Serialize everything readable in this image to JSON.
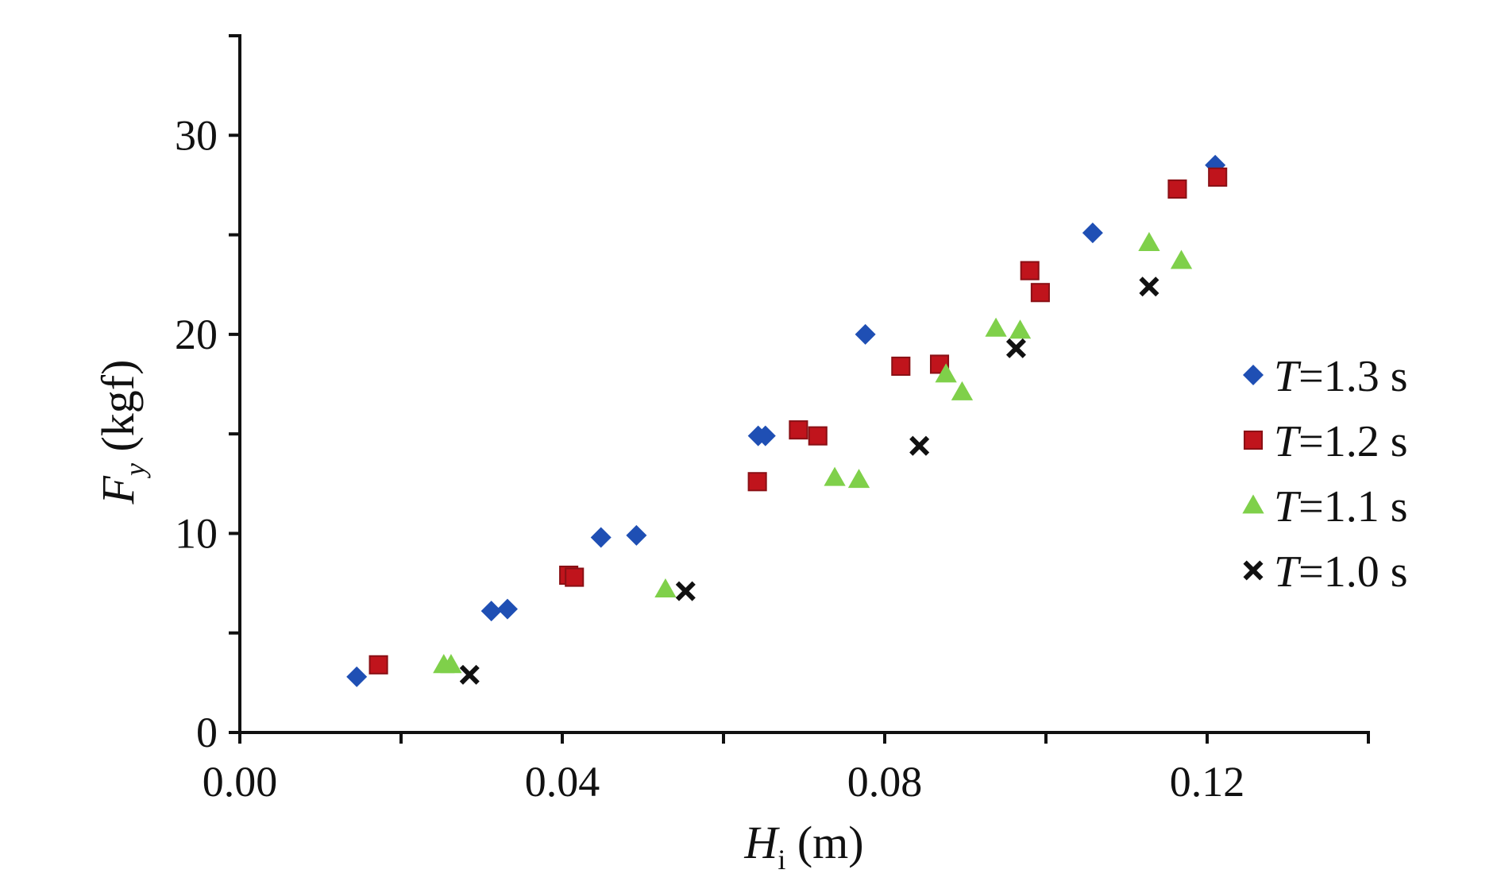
{
  "chart_data": {
    "type": "scatter",
    "title": "",
    "xlabel": {
      "main": "H",
      "sub": "i",
      "unit": " (m)"
    },
    "ylabel": {
      "main": "F",
      "sub": "y",
      "unit": " (kgf)"
    },
    "xlim": [
      0,
      0.14
    ],
    "ylim": [
      0,
      35
    ],
    "x_ticks": [
      0.0,
      0.04,
      0.08,
      0.12
    ],
    "x_tick_labels": [
      "0.00",
      "0.04",
      "0.08",
      "0.12"
    ],
    "x_minor_ticks": [
      0.02,
      0.06,
      0.1,
      0.14
    ],
    "y_ticks": [
      0,
      10,
      20,
      30
    ],
    "y_tick_labels": [
      "0",
      "10",
      "20",
      "30"
    ],
    "y_minor_ticks": [
      5,
      15,
      25,
      35
    ],
    "legend_position": "right",
    "grid": false,
    "series": [
      {
        "name": "T=1.3 s",
        "legend_italic": "T",
        "legend_rest": "=1.3 s",
        "marker": "diamond",
        "color": "#1f4fb4",
        "points": [
          [
            0.0145,
            2.8
          ],
          [
            0.0312,
            6.1
          ],
          [
            0.0332,
            6.2
          ],
          [
            0.0448,
            9.8
          ],
          [
            0.0492,
            9.9
          ],
          [
            0.0643,
            14.9
          ],
          [
            0.0652,
            14.9
          ],
          [
            0.0776,
            20.0
          ],
          [
            0.1058,
            25.1
          ],
          [
            0.121,
            28.5
          ]
        ]
      },
      {
        "name": "T=1.2 s",
        "legend_italic": "T",
        "legend_rest": "=1.2 s",
        "marker": "square",
        "color": "#c0141c",
        "points": [
          [
            0.0172,
            3.4
          ],
          [
            0.0408,
            7.9
          ],
          [
            0.0415,
            7.8
          ],
          [
            0.0642,
            12.6
          ],
          [
            0.0693,
            15.2
          ],
          [
            0.0717,
            14.9
          ],
          [
            0.082,
            18.4
          ],
          [
            0.0868,
            18.5
          ],
          [
            0.098,
            23.2
          ],
          [
            0.0993,
            22.1
          ],
          [
            0.1163,
            27.3
          ],
          [
            0.1213,
            27.9
          ]
        ]
      },
      {
        "name": "T=1.1 s",
        "legend_italic": "T",
        "legend_rest": "=1.1 s",
        "marker": "triangle",
        "color": "#7fd04a",
        "points": [
          [
            0.0253,
            3.4
          ],
          [
            0.0262,
            3.4
          ],
          [
            0.0528,
            7.2
          ],
          [
            0.0738,
            12.8
          ],
          [
            0.0768,
            12.7
          ],
          [
            0.0876,
            18.0
          ],
          [
            0.0896,
            17.1
          ],
          [
            0.0938,
            20.3
          ],
          [
            0.0968,
            20.2
          ],
          [
            0.1128,
            24.6
          ],
          [
            0.1168,
            23.7
          ]
        ]
      },
      {
        "name": "T=1.0 s",
        "legend_italic": "T",
        "legend_rest": "=1.0 s",
        "marker": "x",
        "color": "#111111",
        "points": [
          [
            0.0285,
            2.9
          ],
          [
            0.0553,
            7.1
          ],
          [
            0.0843,
            14.4
          ],
          [
            0.0963,
            19.3
          ],
          [
            0.1128,
            22.4
          ]
        ]
      }
    ]
  }
}
